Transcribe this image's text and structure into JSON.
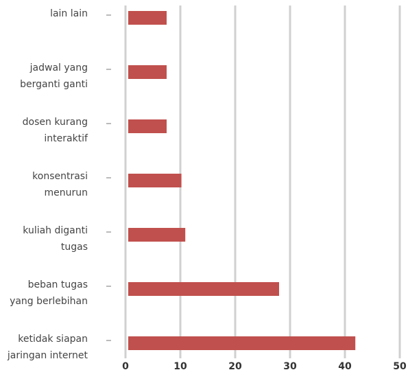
{
  "chart_data": {
    "type": "barh",
    "categories": [
      "lain lain",
      "jadwal yang\nberganti ganti",
      "dosen kurang\ninteraktif",
      "konsentrasi\nmenurun",
      "kuliah diganti\ntugas",
      "beban tugas\nyang berlebihan",
      "ketidak siapan\njaringan internet"
    ],
    "values": [
      7,
      7,
      7,
      9.7,
      10.4,
      27.5,
      41.4
    ],
    "color": "#c0504d",
    "xlim": [
      0,
      50
    ],
    "xticks": [
      0,
      10,
      20,
      30,
      40,
      50
    ],
    "grid": true
  }
}
